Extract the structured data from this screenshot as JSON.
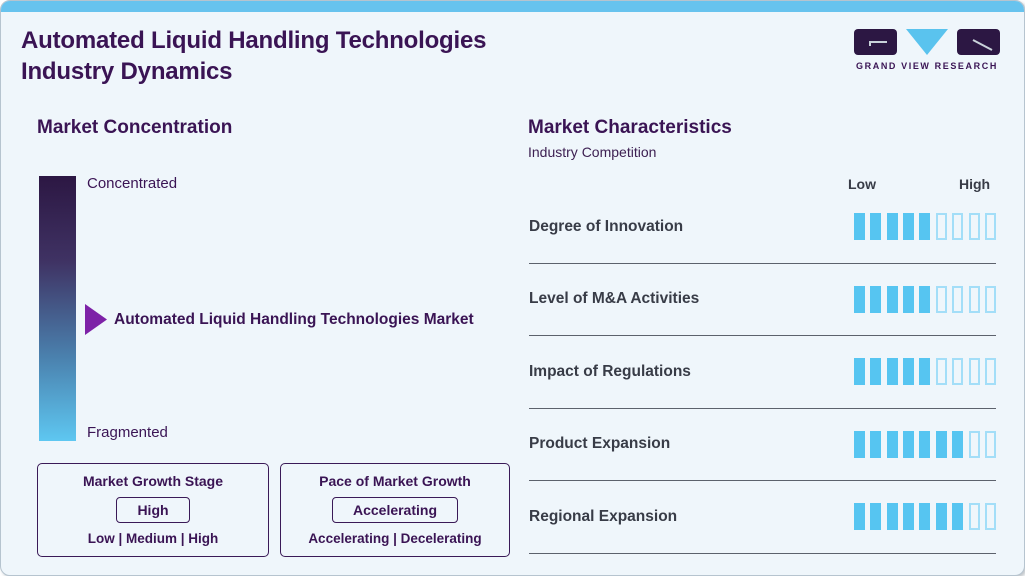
{
  "colors": {
    "accent_blue": "#67c3ee",
    "brand_purple": "#3a1454",
    "arrow_purple": "#7d22a7",
    "segment_fill": "#56c5f1",
    "segment_empty_border": "#a3def8",
    "gradient_top": "#2c1743",
    "gradient_bottom": "#5ec7f1"
  },
  "header": {
    "title_line1": "Automated Liquid Handling Technologies",
    "title_line2": "Industry Dynamics"
  },
  "logo": {
    "text": "GRAND VIEW RESEARCH"
  },
  "market_concentration": {
    "title": "Market Concentration",
    "scale_top": "Concentrated",
    "scale_bottom": "Fragmented",
    "marker_label": "Automated Liquid Handling Technologies Market"
  },
  "growth_stage_box": {
    "title": "Market Growth Stage",
    "value": "High",
    "options": "Low | Medium | High"
  },
  "pace_box": {
    "title": "Pace of Market Growth",
    "value": "Accelerating",
    "options": "Accelerating | Decelerating"
  },
  "market_characteristics": {
    "title": "Market Characteristics",
    "subtitle": "Industry Competition",
    "scale_low": "Low",
    "scale_high": "High",
    "rows": [
      {
        "label": "Degree of Innovation",
        "filled": 5,
        "total": 9
      },
      {
        "label": "Level of M&A Activities",
        "filled": 5,
        "total": 9
      },
      {
        "label": "Impact of Regulations",
        "filled": 5,
        "total": 9
      },
      {
        "label": "Product Expansion",
        "filled": 7,
        "total": 9
      },
      {
        "label": "Regional Expansion",
        "filled": 7,
        "total": 9
      }
    ]
  },
  "chart_data": {
    "type": "bar",
    "title": "Market Characteristics — Industry Competition",
    "categories": [
      "Degree of Innovation",
      "Level of M&A Activities",
      "Impact of Regulations",
      "Product Expansion",
      "Regional Expansion"
    ],
    "values": [
      5,
      5,
      5,
      7,
      7
    ],
    "scale_max": 9,
    "xlabel": "Low → High",
    "ylabel": "",
    "legend": "none",
    "notes": "Each category rated as filled segments out of 9 between Low and High"
  }
}
